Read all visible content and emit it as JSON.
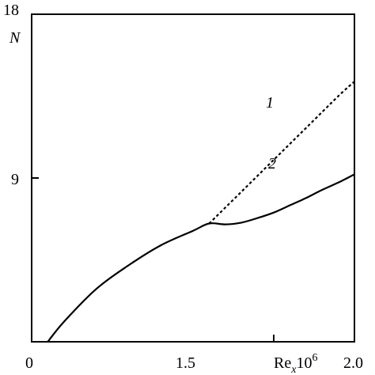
{
  "chart_data": {
    "type": "line",
    "x_axis": {
      "range": [
        0,
        2.0
      ],
      "ticks": [
        0,
        1.5,
        2.0
      ],
      "tick_labels": [
        "0",
        "1.5",
        "2.0"
      ],
      "label_main": "Re",
      "label_sub": "x",
      "label_mid": "10",
      "label_sup": "6"
    },
    "y_axis": {
      "range": [
        0,
        18
      ],
      "ticks": [
        9,
        18
      ],
      "tick_labels": [
        "9",
        "18"
      ],
      "label": "N"
    },
    "grid": false,
    "series": [
      {
        "name": "1",
        "style": "dashed",
        "points": [
          [
            1.1,
            6.5
          ],
          [
            1.3,
            8.25
          ],
          [
            1.5,
            10.0
          ],
          [
            1.7,
            11.75
          ],
          [
            1.9,
            13.5
          ],
          [
            2.0,
            14.3
          ]
        ]
      },
      {
        "name": "2",
        "style": "solid",
        "points": [
          [
            0.1,
            0.0
          ],
          [
            0.2,
            1.1
          ],
          [
            0.4,
            2.9
          ],
          [
            0.6,
            4.2
          ],
          [
            0.8,
            5.3
          ],
          [
            1.0,
            6.1
          ],
          [
            1.1,
            6.5
          ],
          [
            1.2,
            6.45
          ],
          [
            1.3,
            6.55
          ],
          [
            1.4,
            6.8
          ],
          [
            1.5,
            7.1
          ],
          [
            1.6,
            7.5
          ],
          [
            1.7,
            7.9
          ],
          [
            1.8,
            8.35
          ],
          [
            1.9,
            8.75
          ],
          [
            2.0,
            9.2
          ]
        ]
      }
    ]
  }
}
